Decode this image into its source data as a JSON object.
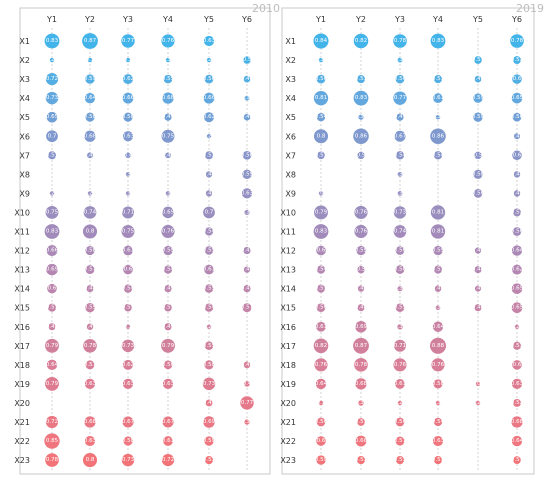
{
  "chart_data": {
    "type": "scatter",
    "columns": [
      "Y1",
      "Y2",
      "Y3",
      "Y4",
      "Y5",
      "Y6"
    ],
    "rows": [
      "X1",
      "X2",
      "X3",
      "X4",
      "X5",
      "X6",
      "X7",
      "X8",
      "X9",
      "X10",
      "X11",
      "X12",
      "X13",
      "X14",
      "X15",
      "X16",
      "X17",
      "X18",
      "X19",
      "X20",
      "X21",
      "X22",
      "X23"
    ],
    "row_colors": [
      "#42b4ea",
      "#48b1e6",
      "#53aee3",
      "#62a8df",
      "#709fd6",
      "#7f99cf",
      "#8894c9",
      "#8c93c5",
      "#9590c2",
      "#9a8ebe",
      "#a28bbb",
      "#ab89b7",
      "#b487b2",
      "#bc85ad",
      "#c483a7",
      "#ca82a2",
      "#d1809c",
      "#d87e96",
      "#de7b90",
      "#e5798a",
      "#ea7784",
      "#ef757e",
      "#f27478"
    ],
    "panels": [
      {
        "year": "2010",
        "values": [
          [
            0.83,
            0.87,
            0.77,
            0.76,
            0.63,
            null
          ],
          [
            0.28,
            0.3,
            0.2,
            0.31,
            0.29,
            0.5
          ],
          [
            0.72,
            0.59,
            0.62,
            0.55,
            0.56,
            0.46
          ],
          [
            0.73,
            0.64,
            0.66,
            0.68,
            0.66,
            0.36
          ],
          [
            0.65,
            0.58,
            0.58,
            0.49,
            0.62,
            0.46
          ],
          [
            0.7,
            0.68,
            0.63,
            0.75,
            0.28,
            null
          ],
          [
            0.53,
            0.42,
            0.4,
            0.41,
            0.53,
            0.56
          ],
          [
            null,
            null,
            0.33,
            null,
            0.44,
            0.59
          ],
          [
            0.24,
            0.27,
            0.31,
            0.35,
            0.44,
            0.63
          ],
          [
            0.75,
            0.74,
            0.71,
            0.69,
            0.7,
            0.38
          ],
          [
            0.83,
            0.8,
            0.75,
            0.76,
            0.54,
            null
          ],
          [
            0.66,
            0.58,
            0.61,
            0.59,
            0.55,
            0.49
          ],
          [
            0.69,
            0.57,
            0.6,
            0.54,
            0.61,
            0.44
          ],
          [
            0.6,
            0.48,
            0.54,
            0.49,
            0.55,
            0.49
          ],
          [
            0.53,
            0.59,
            0.51,
            0.51,
            0.54,
            0.57
          ],
          [
            0.48,
            0.45,
            0.2,
            0.49,
            0.21,
            null
          ],
          [
            0.79,
            0.78,
            0.73,
            0.79,
            0.55,
            null
          ],
          [
            0.64,
            0.57,
            0.62,
            0.56,
            0.58,
            0.46
          ],
          [
            0.79,
            0.63,
            0.63,
            0.63,
            0.73,
            0.4
          ],
          [
            null,
            null,
            null,
            null,
            0.47,
            0.77
          ],
          [
            0.72,
            0.68,
            0.67,
            0.67,
            0.69,
            0.38
          ],
          [
            0.85,
            0.63,
            0.58,
            0.61,
            0.59,
            null
          ],
          [
            0.78,
            0.8,
            0.73,
            0.72,
            0.53,
            null
          ]
        ]
      },
      {
        "year": "2019",
        "values": [
          [
            0.84,
            0.82,
            0.78,
            0.83,
            null,
            0.78
          ],
          [
            0.33,
            null,
            0.36,
            null,
            0.51,
            0.52
          ],
          [
            0.56,
            0.53,
            0.56,
            0.53,
            0.46,
            0.6
          ],
          [
            0.81,
            0.83,
            0.77,
            0.61,
            0.59,
            0.65
          ],
          [
            0.54,
            0.38,
            0.49,
            0.34,
            0.59,
            0.56
          ],
          [
            0.8,
            0.86,
            0.67,
            0.86,
            null,
            0.43
          ],
          [
            0.51,
            0.5,
            0.54,
            0.54,
            0.5,
            0.6
          ],
          [
            null,
            null,
            0.36,
            null,
            0.58,
            0.45
          ],
          [
            0.01,
            null,
            0.36,
            null,
            0.56,
            0.45
          ],
          [
            0.79,
            0.76,
            0.73,
            0.81,
            null,
            0.52
          ],
          [
            0.83,
            0.76,
            0.74,
            0.81,
            null,
            0.56
          ],
          [
            0.6,
            0.59,
            0.56,
            0.59,
            0.44,
            0.64
          ],
          [
            0.54,
            0.5,
            0.56,
            0.53,
            0.48,
            0.62
          ],
          [
            0.53,
            0.44,
            0.38,
            0.45,
            0.43,
            0.65
          ],
          [
            0.56,
            0.48,
            0.55,
            0.35,
            0.48,
            0.65
          ],
          [
            0.61,
            0.69,
            0.39,
            0.64,
            null,
            0.28
          ],
          [
            0.82,
            0.87,
            0.71,
            0.88,
            null,
            0.53
          ],
          [
            0.76,
            0.78,
            0.76,
            0.76,
            null,
            0.6
          ],
          [
            0.64,
            0.68,
            0.61,
            0.58,
            0.08,
            0.63
          ],
          [
            0.3,
            0.39,
            0.26,
            0.33,
            0.28,
            0.52
          ],
          [
            0.56,
            0.51,
            0.56,
            0.54,
            null,
            0.68
          ],
          [
            0.6,
            0.66,
            0.57,
            0.63,
            null,
            0.64
          ],
          [
            0.59,
            0.53,
            0.53,
            0.53,
            null,
            0.51
          ]
        ]
      }
    ]
  }
}
